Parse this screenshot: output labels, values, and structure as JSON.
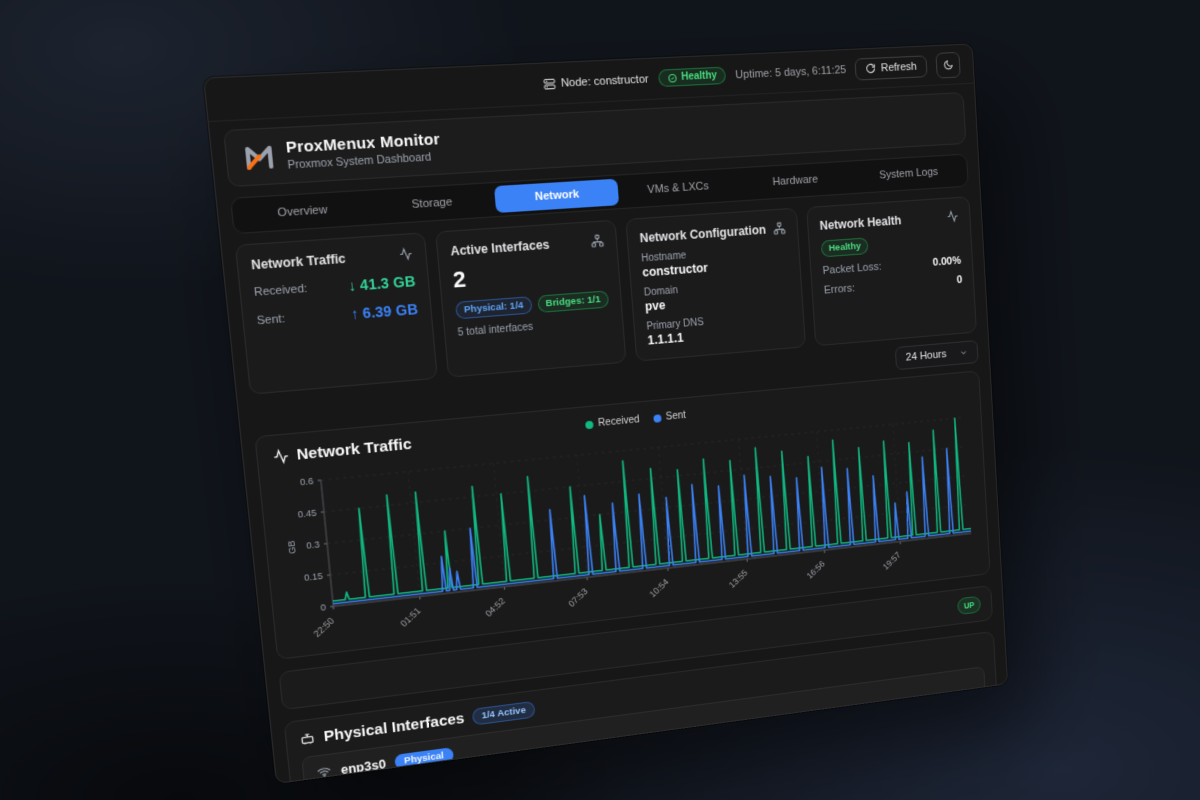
{
  "topbar": {
    "node_label": "Node: constructor",
    "health_badge": "Healthy",
    "uptime": "Uptime: 5 days, 6:11:25",
    "refresh_label": "Refresh"
  },
  "header": {
    "title": "ProxMenux Monitor",
    "subtitle": "Proxmox System Dashboard"
  },
  "tabs": [
    {
      "label": "Overview",
      "active": false
    },
    {
      "label": "Storage",
      "active": false
    },
    {
      "label": "Network",
      "active": true
    },
    {
      "label": "VMs & LXCs",
      "active": false
    },
    {
      "label": "Hardware",
      "active": false
    },
    {
      "label": "System Logs",
      "active": false
    }
  ],
  "cards": {
    "traffic": {
      "title": "Network Traffic",
      "received_label": "Received:",
      "received_value": "↓ 41.3 GB",
      "sent_label": "Sent:",
      "sent_value": "↑ 6.39 GB"
    },
    "interfaces": {
      "title": "Active Interfaces",
      "count": "2",
      "physical_badge": "Physical: 1/4",
      "bridges_badge": "Bridges: 1/1",
      "total": "5 total interfaces"
    },
    "config": {
      "title": "Network Configuration",
      "hostname_label": "Hostname",
      "hostname": "constructor",
      "domain_label": "Domain",
      "domain": "pve",
      "dns_label": "Primary DNS",
      "dns": "1.1.1.1"
    },
    "health": {
      "title": "Network Health",
      "status_badge": "Healthy",
      "packet_loss_label": "Packet Loss:",
      "packet_loss": "0.00%",
      "errors_label": "Errors:",
      "errors": "0"
    }
  },
  "range_select": {
    "value": "24 Hours"
  },
  "chart_data": {
    "type": "line",
    "title": "Network Traffic",
    "ylabel": "GB",
    "ylim": [
      0,
      0.6
    ],
    "yticks": [
      0,
      0.15,
      0.3,
      0.45,
      0.6
    ],
    "xticks": [
      "22:50",
      "01:51",
      "04:52",
      "07:53",
      "10:54",
      "13:55",
      "16:56",
      "19:57"
    ],
    "xtick_interval_hours": 3.0167,
    "x_range_hours": [
      0,
      24
    ],
    "grid": true,
    "legend_position": "top-center",
    "legend": [
      "Received",
      "Sent"
    ],
    "series": [
      {
        "name": "Received",
        "color": "#10b981",
        "baseline_gb": 0.025,
        "spikes": [
          [
            0.5,
            0.06
          ],
          [
            1.2,
            0.45
          ],
          [
            2.2,
            0.5
          ],
          [
            3.2,
            0.5
          ],
          [
            4.1,
            0.3
          ],
          [
            5.2,
            0.5
          ],
          [
            6.2,
            0.45
          ],
          [
            7.2,
            0.52
          ],
          [
            8.7,
            0.45
          ],
          [
            9.7,
            0.3
          ],
          [
            10.7,
            0.55
          ],
          [
            11.7,
            0.5
          ],
          [
            12.7,
            0.48
          ],
          [
            13.7,
            0.52
          ],
          [
            14.7,
            0.5
          ],
          [
            15.7,
            0.55
          ],
          [
            16.7,
            0.52
          ],
          [
            17.7,
            0.48
          ],
          [
            18.7,
            0.55
          ],
          [
            19.7,
            0.5
          ],
          [
            20.7,
            0.52
          ],
          [
            21.7,
            0.5
          ],
          [
            22.7,
            0.55
          ],
          [
            23.6,
            0.6
          ]
        ]
      },
      {
        "name": "Sent",
        "color": "#3b82f6",
        "baseline_gb": 0.012,
        "spikes": [
          [
            3.9,
            0.18
          ],
          [
            4.15,
            0.12
          ],
          [
            4.4,
            0.1
          ],
          [
            5.0,
            0.3
          ],
          [
            7.9,
            0.35
          ],
          [
            9.2,
            0.4
          ],
          [
            10.2,
            0.35
          ],
          [
            11.2,
            0.38
          ],
          [
            12.2,
            0.35
          ],
          [
            13.2,
            0.4
          ],
          [
            14.2,
            0.38
          ],
          [
            15.2,
            0.42
          ],
          [
            16.2,
            0.4
          ],
          [
            17.2,
            0.38
          ],
          [
            18.2,
            0.42
          ],
          [
            19.2,
            0.4
          ],
          [
            20.2,
            0.35
          ],
          [
            21.0,
            0.2
          ],
          [
            21.5,
            0.25
          ],
          [
            22.2,
            0.42
          ],
          [
            23.2,
            0.45
          ]
        ]
      }
    ]
  },
  "bridge_row": {
    "status": "UP"
  },
  "physical": {
    "title": "Physical Interfaces",
    "active_badge": "1/4 Active",
    "rows": [
      {
        "name": "enp3s0",
        "type_badge": "Physical"
      }
    ]
  },
  "colors": {
    "accent_blue": "#3b82f6",
    "green": "#10b981",
    "orange_logo": "#f97316",
    "panel_bg": "#171717",
    "card_bg": "#1b1b1b"
  }
}
